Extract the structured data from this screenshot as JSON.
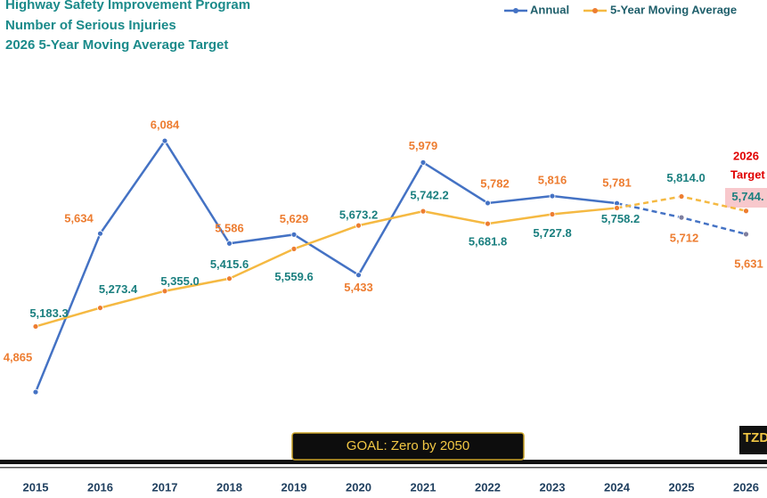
{
  "chart_data": {
    "type": "line",
    "title": "Highway Safety Improvement Program",
    "subtitle": "Number of Serious Injuries",
    "subtitle2": "2026 5-Year Moving Average Target",
    "categories": [
      "2015",
      "2016",
      "2017",
      "2018",
      "2019",
      "2020",
      "2021",
      "2022",
      "2023",
      "2024",
      "2025",
      "2026"
    ],
    "series": [
      {
        "name": "Annual",
        "color": "#4472c4",
        "label_color": "#ed7d31",
        "values": [
          4865,
          5634,
          6084,
          5586,
          5629,
          5433,
          5979,
          5782,
          5816,
          5781,
          5712,
          5631
        ],
        "value_labels": [
          "4,865",
          "5,634",
          "6,084",
          "5,586",
          "5,629",
          "5,433",
          "5,979",
          "5,782",
          "5,816",
          "5,781",
          "5,712",
          "5,631"
        ]
      },
      {
        "name": "5-Year Moving Average",
        "color": "#f5b942",
        "marker_color": "#ed7d31",
        "label_color": "#1a7f7f",
        "values": [
          5183.3,
          5273.4,
          5355.0,
          5415.6,
          5559.6,
          5673.2,
          5742.2,
          5681.8,
          5727.8,
          5758.2,
          5814.0,
          5744
        ],
        "value_labels": [
          "5,183.3",
          "5,273.4",
          "5,355.0",
          "5,415.6",
          "5,559.6",
          "5,673.2",
          "5,742.2",
          "5,681.8",
          "5,727.8",
          "5,758.2",
          "5,814.0",
          "5,744."
        ]
      }
    ],
    "ylim": [
      4606,
      6335
    ],
    "target_annotation": [
      "2026",
      "Target"
    ],
    "goal": "GOAL:  Zero by 2050",
    "logo": "TZD"
  }
}
